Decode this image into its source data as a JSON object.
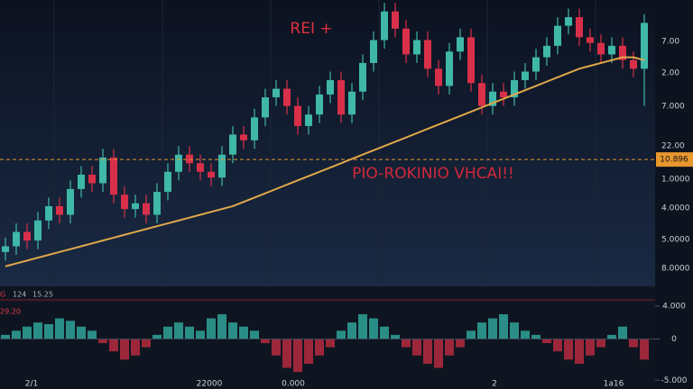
{
  "chart_data": [
    {
      "type": "candlestick",
      "title": "REI +",
      "subtitle": "PIO-ROKINIO VHCAI!!",
      "open": [
        1.2,
        1.4,
        1.9,
        1.6,
        2.3,
        2.8,
        2.5,
        3.4,
        3.9,
        3.6,
        4.5,
        3.2,
        2.7,
        2.9,
        2.5,
        3.3,
        4.0,
        4.6,
        4.3,
        4.0,
        3.8,
        4.6,
        5.3,
        5.1,
        5.9,
        6.6,
        6.9,
        6.3,
        5.6,
        6.0,
        6.7,
        7.2,
        6.0,
        6.8,
        7.8,
        8.6,
        9.6,
        9.0,
        8.1,
        8.6,
        7.6,
        7.0,
        8.2,
        8.7,
        7.1,
        6.3,
        6.8,
        6.6,
        7.2,
        7.5,
        8.0,
        8.4,
        9.1,
        9.4,
        8.7,
        8.5,
        8.1,
        8.4,
        7.9,
        7.6
      ],
      "high": [
        1.7,
        2.2,
        2.2,
        2.6,
        3.1,
        3.1,
        3.7,
        4.2,
        4.2,
        4.8,
        4.8,
        3.5,
        3.2,
        3.2,
        3.6,
        4.3,
        4.9,
        4.9,
        4.6,
        4.3,
        4.9,
        5.6,
        5.6,
        6.2,
        6.9,
        7.2,
        7.2,
        6.6,
        6.3,
        7.0,
        7.5,
        7.5,
        7.1,
        8.1,
        8.9,
        9.9,
        9.9,
        9.3,
        8.9,
        8.9,
        7.9,
        8.5,
        9.0,
        9.0,
        7.4,
        7.1,
        7.1,
        7.5,
        7.8,
        8.3,
        8.7,
        9.4,
        9.7,
        9.7,
        9.0,
        8.8,
        8.7,
        8.7,
        8.2,
        9.5
      ],
      "low": [
        0.9,
        1.1,
        1.3,
        1.3,
        2.0,
        2.2,
        2.2,
        3.1,
        3.3,
        3.3,
        2.9,
        2.4,
        2.4,
        2.2,
        2.2,
        3.0,
        3.7,
        4.0,
        3.7,
        3.5,
        3.5,
        4.3,
        4.8,
        4.8,
        5.6,
        6.3,
        6.0,
        5.3,
        5.3,
        5.7,
        6.4,
        5.7,
        5.7,
        6.5,
        7.5,
        8.3,
        8.7,
        7.8,
        7.8,
        7.3,
        6.7,
        6.7,
        7.9,
        6.8,
        6.0,
        6.0,
        6.3,
        6.3,
        6.9,
        7.2,
        7.7,
        8.1,
        8.8,
        8.4,
        8.2,
        7.8,
        7.8,
        7.6,
        7.3,
        6.3
      ],
      "close": [
        1.4,
        1.9,
        1.6,
        2.3,
        2.8,
        2.5,
        3.4,
        3.9,
        3.6,
        4.5,
        3.2,
        2.7,
        2.9,
        2.5,
        3.3,
        4.0,
        4.6,
        4.3,
        4.0,
        3.8,
        4.6,
        5.3,
        5.1,
        5.9,
        6.6,
        6.9,
        6.3,
        5.6,
        6.0,
        6.7,
        7.2,
        6.0,
        6.8,
        7.8,
        8.6,
        9.6,
        9.0,
        8.1,
        8.6,
        7.6,
        7.0,
        8.2,
        8.7,
        7.1,
        6.3,
        6.8,
        6.6,
        7.2,
        7.5,
        8.0,
        8.4,
        9.1,
        9.4,
        8.7,
        8.5,
        8.1,
        8.4,
        7.9,
        7.6,
        9.2
      ],
      "up_color": "#3fb8a8",
      "down_color": "#d9304a",
      "ma": {
        "color": "#e0a84a",
        "values": [
          0.7,
          0.8,
          0.9,
          1.0,
          1.1,
          1.2,
          1.3,
          1.4,
          1.5,
          1.6,
          1.7,
          1.8,
          1.9,
          2.0,
          2.1,
          2.2,
          2.3,
          2.4,
          2.5,
          2.6,
          2.7,
          2.8,
          2.95,
          3.1,
          3.25,
          3.4,
          3.55,
          3.7,
          3.85,
          4.0,
          4.15,
          4.3,
          4.45,
          4.6,
          4.75,
          4.9,
          5.05,
          5.2,
          5.35,
          5.5,
          5.65,
          5.8,
          5.95,
          6.1,
          6.25,
          6.4,
          6.55,
          6.7,
          6.85,
          7.0,
          7.15,
          7.3,
          7.45,
          7.6,
          7.7,
          7.8,
          7.9,
          8.0,
          8.0,
          7.9
        ]
      },
      "ylim": [
        0,
        10
      ],
      "price_line": 4.43,
      "price_label": "10.896",
      "price_color": "#e8962e",
      "axis_labels": [
        "7.00",
        "2.00",
        "7.000",
        "22.00",
        "1.0000",
        "4.0000",
        "5.0000",
        "8.0000"
      ],
      "annotations": [
        "G",
        "124",
        "15.25",
        "29.20"
      ]
    },
    {
      "type": "histogram-oscillator",
      "values": [
        0.5,
        1.0,
        1.5,
        2.0,
        1.8,
        2.5,
        2.2,
        1.5,
        1.0,
        -0.5,
        -1.5,
        -2.5,
        -2.0,
        -1.0,
        0.5,
        1.5,
        2.0,
        1.5,
        1.0,
        2.5,
        3.0,
        2.0,
        1.5,
        1.0,
        -0.5,
        -2.0,
        -3.5,
        -4.0,
        -3.0,
        -2.0,
        -1.0,
        1.0,
        2.0,
        3.0,
        2.5,
        1.5,
        0.5,
        -1.0,
        -2.0,
        -3.0,
        -3.5,
        -2.0,
        -1.0,
        1.0,
        2.0,
        2.5,
        3.0,
        2.0,
        1.0,
        0.5,
        -0.5,
        -1.5,
        -2.5,
        -3.0,
        -2.0,
        -1.0,
        0.5,
        1.5,
        -1.0,
        -2.5
      ],
      "up_color": "#2fa39a",
      "down_color": "#b52a40",
      "ylim": [
        -5.3,
        4.2
      ],
      "yticks": [
        {
          "value": 4,
          "label": "4.000"
        },
        0,
        {
          "value": -5,
          "label": "-5.000"
        }
      ],
      "x_labels": [
        "2/1",
        "22000",
        "0.000",
        "2",
        "1a16"
      ]
    }
  ]
}
